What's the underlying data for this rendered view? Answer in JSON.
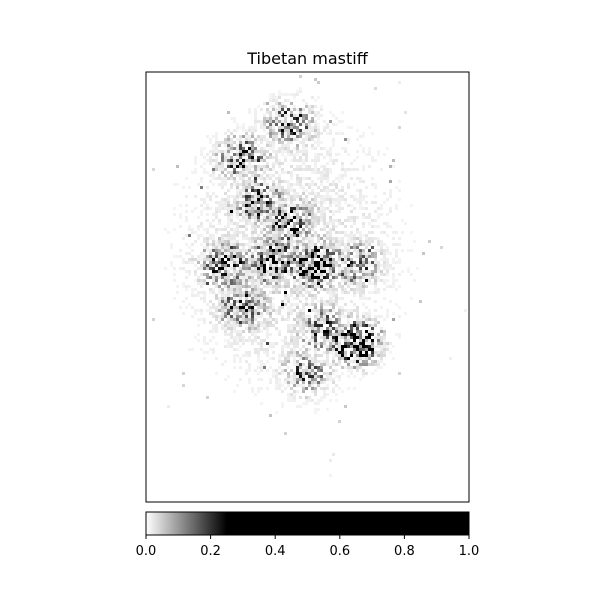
{
  "chart_data": {
    "type": "heatmap",
    "title": "Tibetan mastiff",
    "xlabel": "",
    "ylabel": "",
    "grid": false,
    "colormap": "gray_r",
    "colorbar": {
      "orientation": "horizontal",
      "placement": "bottom",
      "vmin": 0.0,
      "vmax": 1.0,
      "ticks": [
        0.0,
        0.2,
        0.4,
        0.6,
        0.8,
        1.0
      ],
      "tick_labels": [
        "0.0",
        "0.2",
        "0.4",
        "0.6",
        "0.8",
        "1.0"
      ],
      "saturation_at": 0.25
    },
    "hotspots": [
      {
        "x": 0.3,
        "y": 0.2,
        "intensity": 0.45
      },
      {
        "x": 0.45,
        "y": 0.12,
        "intensity": 0.4
      },
      {
        "x": 0.35,
        "y": 0.3,
        "intensity": 0.4
      },
      {
        "x": 0.25,
        "y": 0.45,
        "intensity": 0.55
      },
      {
        "x": 0.4,
        "y": 0.44,
        "intensity": 0.6
      },
      {
        "x": 0.52,
        "y": 0.45,
        "intensity": 0.8
      },
      {
        "x": 0.45,
        "y": 0.35,
        "intensity": 0.45
      },
      {
        "x": 0.65,
        "y": 0.45,
        "intensity": 0.4
      },
      {
        "x": 0.3,
        "y": 0.55,
        "intensity": 0.4
      },
      {
        "x": 0.55,
        "y": 0.6,
        "intensity": 0.4
      },
      {
        "x": 0.65,
        "y": 0.63,
        "intensity": 0.85
      },
      {
        "x": 0.5,
        "y": 0.7,
        "intensity": 0.3
      }
    ]
  }
}
